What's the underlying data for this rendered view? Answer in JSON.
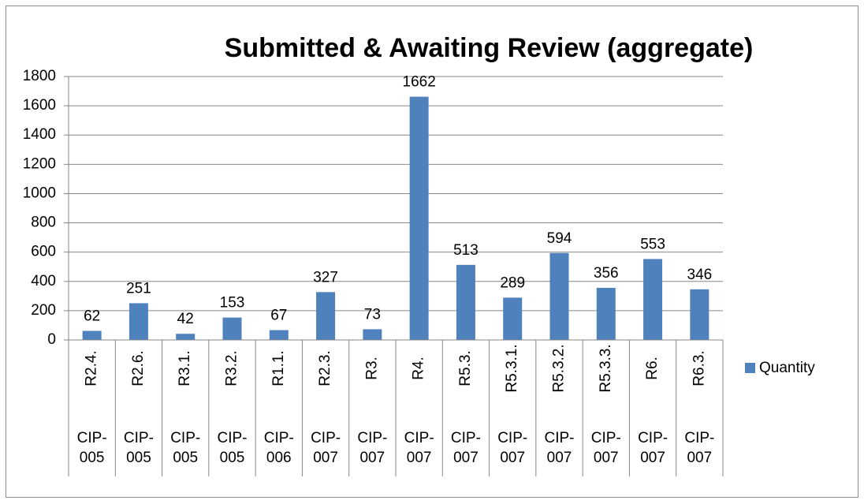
{
  "chart_data": {
    "type": "bar",
    "title": "Submitted & Awaiting Review (aggregate)",
    "categories": [
      "R2.4.",
      "R2.6.",
      "R3.1.",
      "R3.2.",
      "R1.1.",
      "R2.3.",
      "R3.",
      "R4.",
      "R5.3.",
      "R5.3.1.",
      "R5.3.2.",
      "R5.3.3.",
      "R6.",
      "R6.3."
    ],
    "category_groups": [
      "CIP-005",
      "CIP-005",
      "CIP-005",
      "CIP-005",
      "CIP-006",
      "CIP-007",
      "CIP-007",
      "CIP-007",
      "CIP-007",
      "CIP-007",
      "CIP-007",
      "CIP-007",
      "CIP-007",
      "CIP-007"
    ],
    "series": [
      {
        "name": "Quantity",
        "color": "#4f81bd",
        "values": [
          62,
          251,
          42,
          153,
          67,
          327,
          73,
          1662,
          513,
          289,
          594,
          356,
          553,
          346
        ]
      }
    ],
    "ylim": [
      0,
      1800
    ],
    "yticks": [
      0,
      200,
      400,
      600,
      800,
      1000,
      1200,
      1400,
      1600,
      1800
    ],
    "grid": true,
    "legend": "right",
    "data_labels": true
  }
}
